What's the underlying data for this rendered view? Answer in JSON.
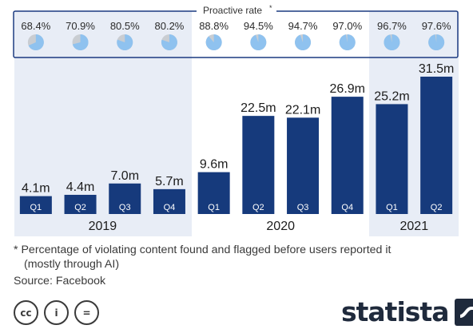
{
  "chart_data": {
    "type": "bar",
    "title": "",
    "proactive_rate_label": "Proactive rate",
    "proactive_rate_mark": "*",
    "years": [
      {
        "label": "2019",
        "quarters": [
          "Q1",
          "Q2",
          "Q3",
          "Q4"
        ]
      },
      {
        "label": "2020",
        "quarters": [
          "Q1",
          "Q2",
          "Q3",
          "Q4"
        ]
      },
      {
        "label": "2021",
        "quarters": [
          "Q1",
          "Q2"
        ]
      }
    ],
    "categories": [
      "2019 Q1",
      "2019 Q2",
      "2019 Q3",
      "2019 Q4",
      "2020 Q1",
      "2020 Q2",
      "2020 Q3",
      "2020 Q4",
      "2021 Q1",
      "2021 Q2"
    ],
    "series": [
      {
        "values": [
          4.1,
          4.4,
          7.0,
          5.7,
          9.6,
          22.5,
          22.1,
          26.9,
          25.2,
          31.5
        ]
      }
    ],
    "value_labels": [
      "4.1m",
      "4.4m",
      "7.0m",
      "5.7m",
      "9.6m",
      "22.5m",
      "22.1m",
      "26.9m",
      "25.2m",
      "31.5m"
    ],
    "proactive_rate": [
      68.4,
      70.9,
      80.5,
      80.2,
      88.8,
      94.5,
      94.7,
      97.0,
      96.7,
      97.6
    ],
    "proactive_rate_labels": [
      "68.4%",
      "70.9%",
      "80.5%",
      "80.2%",
      "88.8%",
      "94.5%",
      "94.7%",
      "97.0%",
      "96.7%",
      "97.6%"
    ],
    "ylim": [
      0,
      31.5
    ],
    "colors": {
      "bar": "#163a7c",
      "shade": "#e8edf6",
      "pie_fill": "#8fc2ef",
      "pie_bg": "#c9cdd2",
      "frame": "#1a3a80"
    }
  },
  "footnote": {
    "line1": "* Percentage of violating content found and flagged before users reported it",
    "line2": "(mostly through AI)",
    "source": "Source: Facebook"
  },
  "license_icons": [
    {
      "label": "cc",
      "icon": "creative-commons-icon"
    },
    {
      "label": "i",
      "icon": "attribution-icon"
    },
    {
      "label": "=",
      "icon": "no-derivatives-icon"
    }
  ],
  "brand": {
    "name": "statista"
  }
}
